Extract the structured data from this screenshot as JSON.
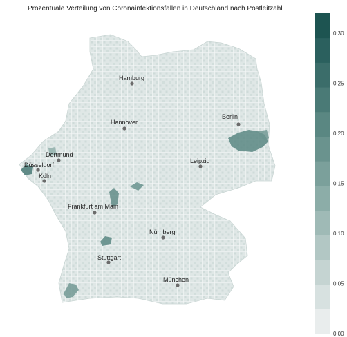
{
  "title": "Prozentuale Verteilung von Coronainfektionsfällen in Deutschland nach Postleitzahl",
  "colors": {
    "scale": [
      "#e9eded",
      "#d7e1e0",
      "#c5d4d2",
      "#b2c7c4",
      "#9fbab6",
      "#8cada8",
      "#7ba09b",
      "#6a938e",
      "#5a8782",
      "#4a7a76",
      "#3b6d6a",
      "#2b605e",
      "#1d5451"
    ],
    "background": "#ffffff"
  },
  "cities": [
    {
      "name": "Hamburg"
    },
    {
      "name": "Berlin"
    },
    {
      "name": "Hannover"
    },
    {
      "name": "Dortmund"
    },
    {
      "name": "Düsseldorf"
    },
    {
      "name": "Köln"
    },
    {
      "name": "Leipzig"
    },
    {
      "name": "Frankfurt am Main"
    },
    {
      "name": "Nürnberg"
    },
    {
      "name": "Stuttgart"
    },
    {
      "name": "München"
    }
  ],
  "legend": {
    "ticks": [
      "0.00",
      "0.05",
      "0.10",
      "0.15",
      "0.20",
      "0.25",
      "0.30"
    ],
    "min": 0,
    "max": 0.32
  }
}
